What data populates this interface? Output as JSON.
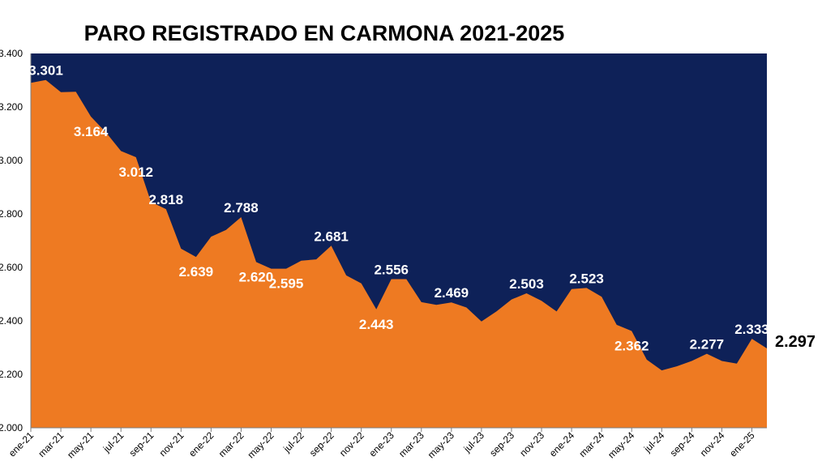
{
  "chart_data": {
    "type": "area",
    "title": "PARO REGISTRADO EN CARMONA 2021-2025",
    "xlabel": "",
    "ylabel": "",
    "ylim": [
      2000,
      3400
    ],
    "yticks": [
      "2.000",
      "2.200",
      "2.400",
      "2.600",
      "2.800",
      "3.000",
      "3.200",
      "3.400"
    ],
    "x_tick_labels": [
      "ene-21",
      "mar-21",
      "may-21",
      "jul-21",
      "sep-21",
      "nov-21",
      "ene-22",
      "mar-22",
      "may-22",
      "jul-22",
      "sep-22",
      "nov-22",
      "ene-23",
      "mar-23",
      "may-23",
      "jul-23",
      "sep-23",
      "nov-23",
      "ene-24",
      "mar-24",
      "may-24",
      "jul-24",
      "sep-24",
      "nov-24",
      "ene-25"
    ],
    "x": [
      "ene-21",
      "feb-21",
      "mar-21",
      "abr-21",
      "may-21",
      "jun-21",
      "jul-21",
      "ago-21",
      "sep-21",
      "oct-21",
      "nov-21",
      "dic-21",
      "ene-22",
      "feb-22",
      "mar-22",
      "abr-22",
      "may-22",
      "jun-22",
      "jul-22",
      "ago-22",
      "sep-22",
      "oct-22",
      "nov-22",
      "dic-22",
      "ene-23",
      "feb-23",
      "mar-23",
      "abr-23",
      "may-23",
      "jun-23",
      "jul-23",
      "ago-23",
      "sep-23",
      "oct-23",
      "nov-23",
      "dic-23",
      "ene-24",
      "feb-24",
      "mar-24",
      "abr-24",
      "may-24",
      "jun-24",
      "jul-24",
      "ago-24",
      "sep-24",
      "oct-24",
      "nov-24",
      "dic-24",
      "ene-25",
      "feb-25"
    ],
    "values": [
      3290,
      3301,
      3255,
      3257,
      3164,
      3105,
      3035,
      3012,
      2845,
      2818,
      2670,
      2639,
      2715,
      2740,
      2788,
      2620,
      2595,
      2595,
      2625,
      2630,
      2681,
      2570,
      2540,
      2443,
      2556,
      2556,
      2470,
      2460,
      2469,
      2450,
      2398,
      2435,
      2480,
      2503,
      2475,
      2435,
      2519,
      2523,
      2490,
      2385,
      2362,
      2255,
      2215,
      2230,
      2250,
      2277,
      2250,
      2240,
      2333,
      2297
    ],
    "data_labels": [
      {
        "index": 1,
        "text": "3.301",
        "pos": "above"
      },
      {
        "index": 4,
        "text": "3.164",
        "pos": "below"
      },
      {
        "index": 7,
        "text": "3.012",
        "pos": "below"
      },
      {
        "index": 9,
        "text": "2.818",
        "pos": "above"
      },
      {
        "index": 11,
        "text": "2.639",
        "pos": "below"
      },
      {
        "index": 14,
        "text": "2.788",
        "pos": "above"
      },
      {
        "index": 15,
        "text": "2.620",
        "pos": "below"
      },
      {
        "index": 17,
        "text": "2.595",
        "pos": "below"
      },
      {
        "index": 20,
        "text": "2.681",
        "pos": "above"
      },
      {
        "index": 23,
        "text": "2.443",
        "pos": "below"
      },
      {
        "index": 24,
        "text": "2.556",
        "pos": "above"
      },
      {
        "index": 28,
        "text": "2.469",
        "pos": "above"
      },
      {
        "index": 33,
        "text": "2.503",
        "pos": "above"
      },
      {
        "index": 37,
        "text": "2.523",
        "pos": "above"
      },
      {
        "index": 40,
        "text": "2.362",
        "pos": "below"
      },
      {
        "index": 45,
        "text": "2.277",
        "pos": "above"
      },
      {
        "index": 48,
        "text": "2.333",
        "pos": "above"
      },
      {
        "index": 49,
        "text": "2.297",
        "pos": "right"
      }
    ],
    "colors": {
      "area": "#ee7a22",
      "background": "#0e2158"
    },
    "grid": false,
    "legend": "none"
  }
}
